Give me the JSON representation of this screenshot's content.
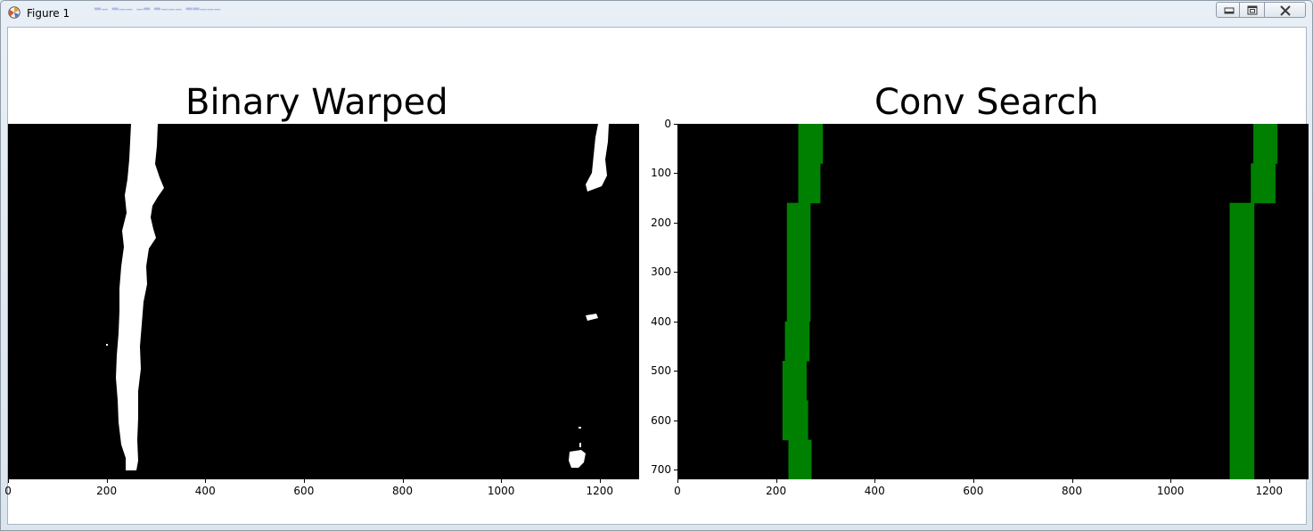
{
  "window": {
    "title": "Figure 1",
    "controls": {
      "minimize": "minimize",
      "maximize": "maximize",
      "close": "close"
    }
  },
  "left_plot": {
    "title": "Binary Warped",
    "x_ticks": [
      "0",
      "200",
      "400",
      "600",
      "800",
      "1000",
      "1200"
    ]
  },
  "right_plot": {
    "title": "Conv Search",
    "x_ticks": [
      "0",
      "200",
      "400",
      "600",
      "800",
      "1000",
      "1200"
    ],
    "y_ticks": [
      "0",
      "100",
      "200",
      "300",
      "400",
      "500",
      "600",
      "700"
    ]
  },
  "chart_data": [
    {
      "type": "heatmap",
      "title": "Binary Warped",
      "xlim": [
        0,
        1280
      ],
      "ylim": [
        720,
        0
      ],
      "colors": {
        "background": "#000000",
        "pixels": "#ffffff"
      },
      "image": "binary bird's-eye lane mask"
    },
    {
      "type": "heatmap",
      "title": "Conv Search",
      "xlim": [
        0,
        1280
      ],
      "ylim": [
        720,
        0
      ],
      "colors": {
        "background": "#000000",
        "windows": "#008000"
      },
      "left_windows": [
        {
          "x": [
            245,
            295
          ],
          "y": [
            0,
            80
          ]
        },
        {
          "x": [
            245,
            290
          ],
          "y": [
            80,
            160
          ]
        },
        {
          "x": [
            222,
            270
          ],
          "y": [
            160,
            240
          ]
        },
        {
          "x": [
            222,
            270
          ],
          "y": [
            240,
            320
          ]
        },
        {
          "x": [
            222,
            270
          ],
          "y": [
            320,
            400
          ]
        },
        {
          "x": [
            218,
            268
          ],
          "y": [
            400,
            480
          ]
        },
        {
          "x": [
            213,
            262
          ],
          "y": [
            480,
            560
          ]
        },
        {
          "x": [
            213,
            265
          ],
          "y": [
            560,
            640
          ]
        },
        {
          "x": [
            225,
            272
          ],
          "y": [
            640,
            720
          ]
        }
      ],
      "right_windows": [
        {
          "x": [
            1168,
            1217
          ],
          "y": [
            0,
            80
          ]
        },
        {
          "x": [
            1163,
            1213
          ],
          "y": [
            80,
            160
          ]
        },
        {
          "x": [
            1120,
            1170
          ],
          "y": [
            160,
            240
          ]
        },
        {
          "x": [
            1120,
            1170
          ],
          "y": [
            240,
            320
          ]
        },
        {
          "x": [
            1120,
            1170
          ],
          "y": [
            320,
            400
          ]
        },
        {
          "x": [
            1120,
            1170
          ],
          "y": [
            400,
            480
          ]
        },
        {
          "x": [
            1120,
            1170
          ],
          "y": [
            480,
            560
          ]
        },
        {
          "x": [
            1120,
            1170
          ],
          "y": [
            560,
            640
          ]
        },
        {
          "x": [
            1120,
            1170
          ],
          "y": [
            640,
            720
          ]
        }
      ]
    }
  ]
}
